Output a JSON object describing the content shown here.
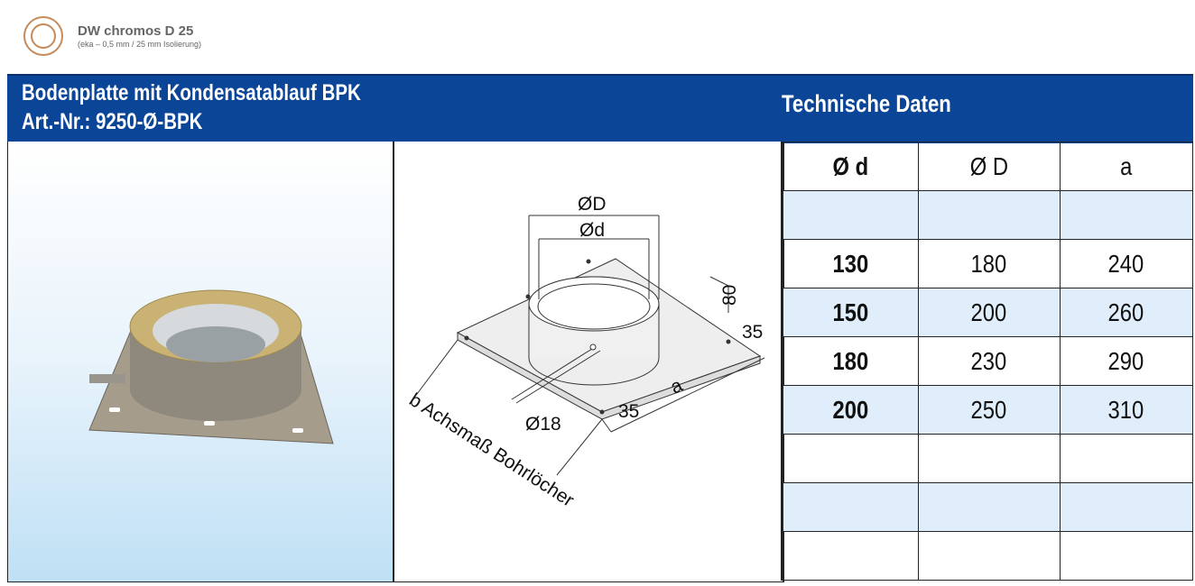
{
  "brand": {
    "name": "DW chromos D 25",
    "subtitle": "(eka – 0,5 mm / 25 mm Isolierung)",
    "logo_color": "#c58a5a"
  },
  "header": {
    "title_line1": "Bodenplatte mit Kondensatablauf  BPK",
    "title_line2": "Art.-Nr.: 9250-Ø-BPK",
    "tech_title": "Technische Daten",
    "color": "#0b4597"
  },
  "drawing": {
    "labels": {
      "outer_diameter": "ØD",
      "inner_diameter": "Ød",
      "height": "80",
      "offset_right": "35",
      "offset_front": "35",
      "a": "a",
      "drain": "Ø18",
      "bolt": "b Achsmaß Bohrlöcher"
    }
  },
  "table": {
    "headers": [
      "Ø d",
      "Ø D",
      "a"
    ],
    "rows": [
      [
        "",
        "",
        ""
      ],
      [
        "130",
        "180",
        "240"
      ],
      [
        "150",
        "200",
        "260"
      ],
      [
        "180",
        "230",
        "290"
      ],
      [
        "200",
        "250",
        "310"
      ],
      [
        "",
        "",
        ""
      ],
      [
        "",
        "",
        ""
      ],
      [
        "",
        "",
        ""
      ]
    ]
  }
}
